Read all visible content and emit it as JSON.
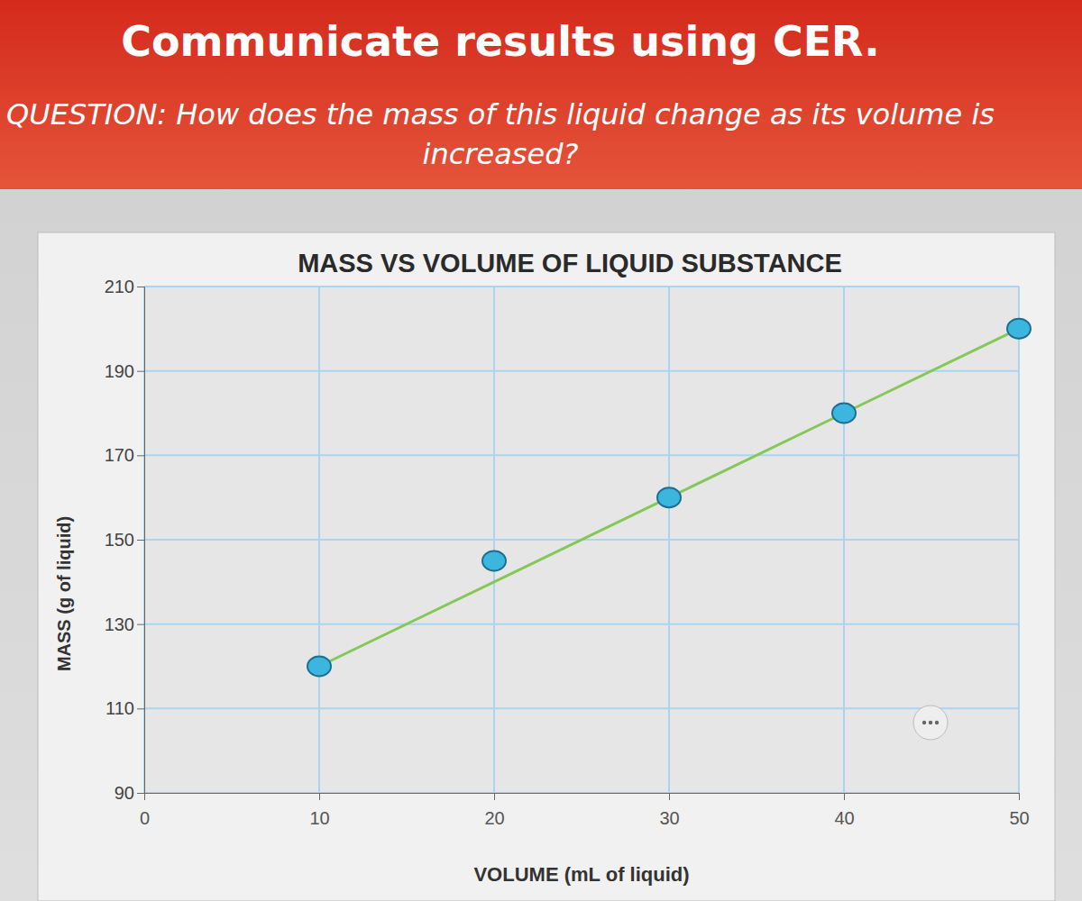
{
  "chart_data": {
    "type": "scatter",
    "title": "MASS VS VOLUME OF LIQUID SUBSTANCE",
    "heading": "Communicate results using CER.",
    "subtitle": "QUESTION: How does the mass of this liquid change as its volume is increased?",
    "x_label": "VOLUME (mL of liquid)",
    "y_label": "MASS (g of liquid)",
    "x": [
      10,
      20,
      30,
      40,
      50
    ],
    "series": [
      {
        "type": "scatter",
        "marker": "circle",
        "color": "#3bb6de",
        "values": [
          120,
          145,
          160,
          180,
          200
        ]
      },
      {
        "type": "line",
        "line_style": "solid",
        "color": "#86c857",
        "values": [
          120,
          140,
          160,
          180,
          200
        ]
      }
    ],
    "xlim": [
      0,
      50
    ],
    "xticks": [
      0,
      10,
      20,
      30,
      40,
      50
    ],
    "ylim": [
      90,
      210
    ],
    "yticks": [
      90,
      110,
      130,
      150,
      170,
      190,
      210
    ],
    "grid": true
  }
}
